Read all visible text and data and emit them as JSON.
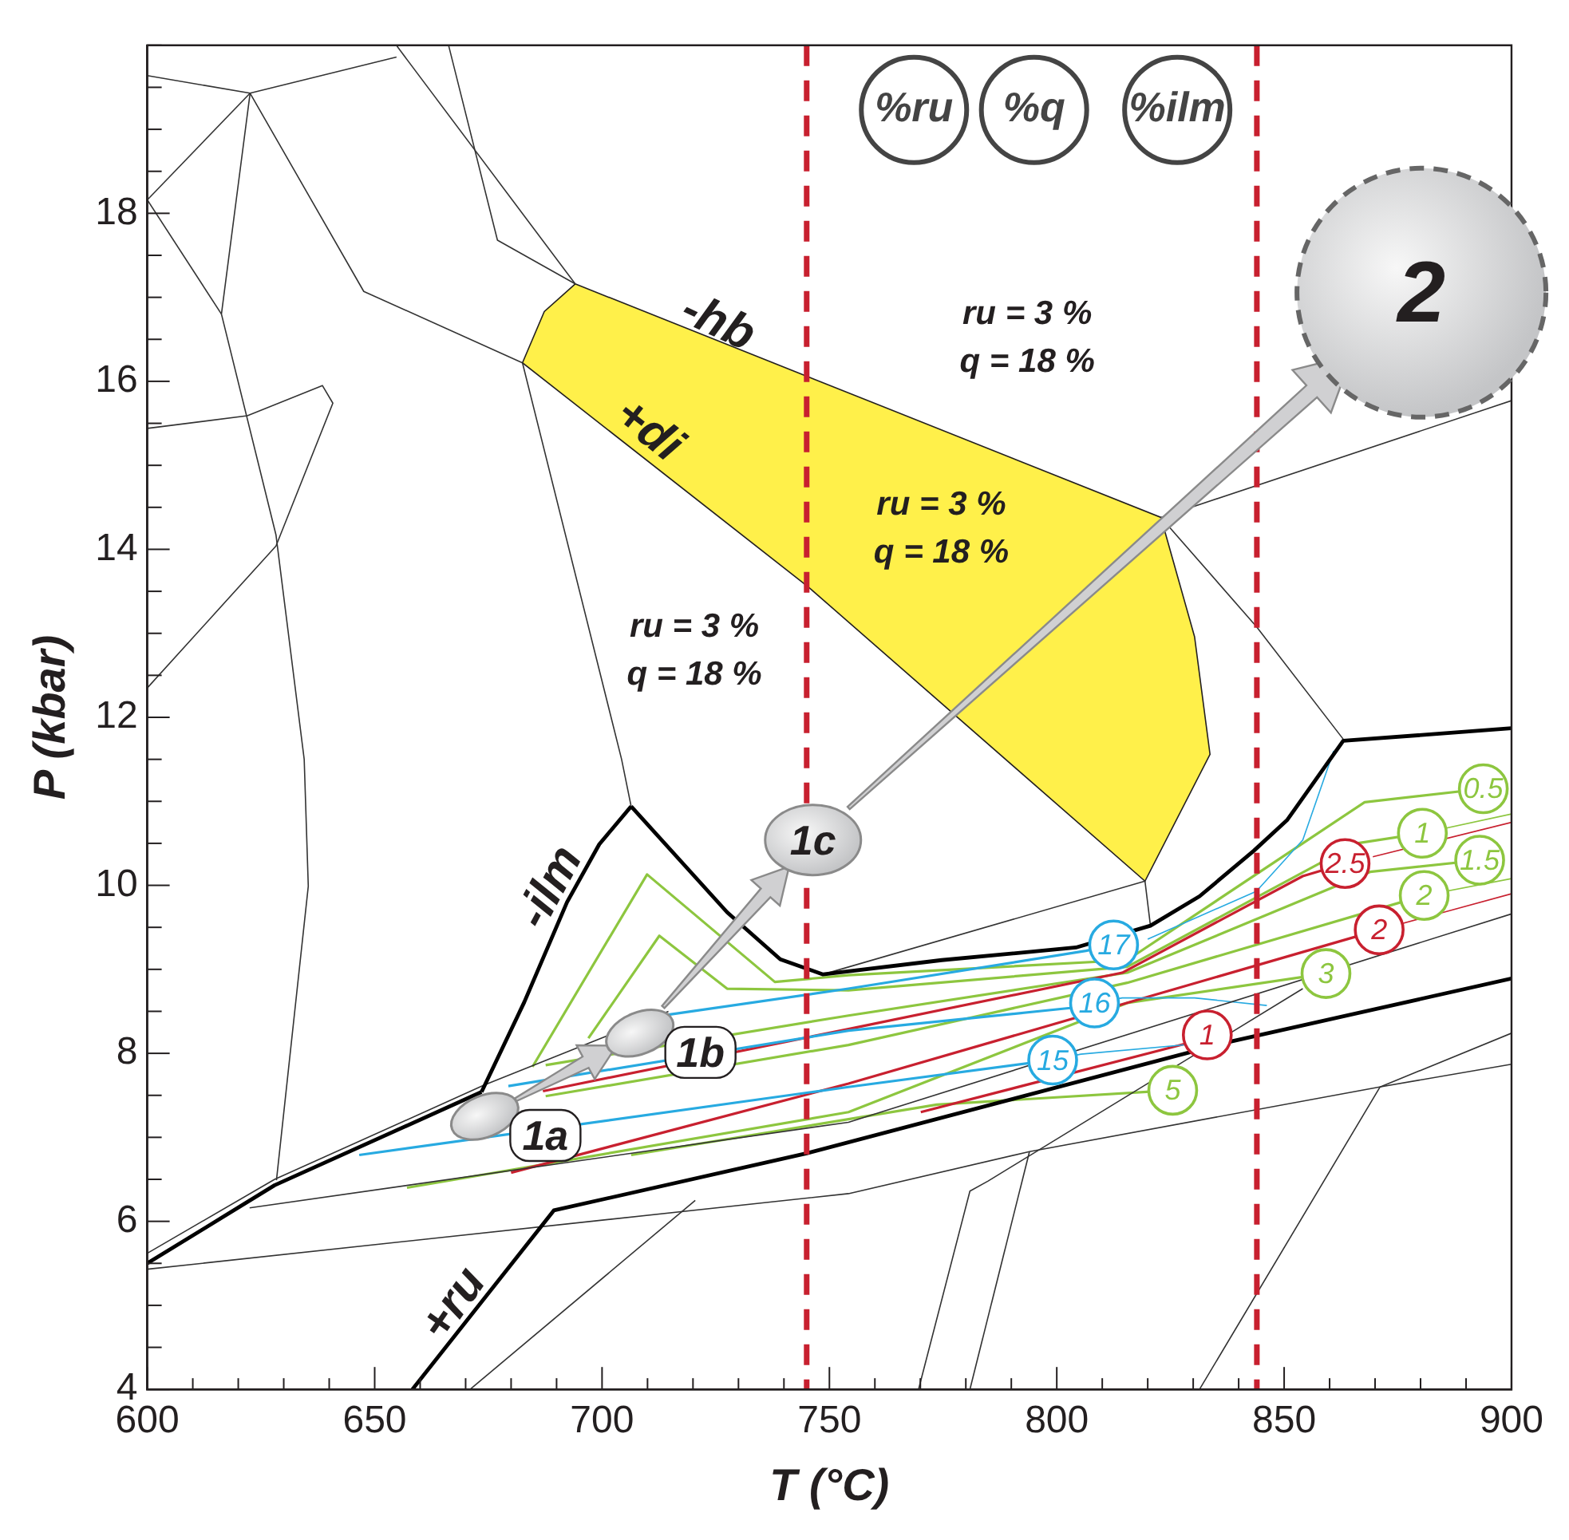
{
  "chart_data": {
    "type": "line",
    "xlabel": "T (°C)",
    "ylabel": "P (kbar)",
    "xlim": [
      600,
      900
    ],
    "ylim": [
      4,
      20
    ],
    "xticks": [
      600,
      {
        "value": 610,
        "label": null
      },
      {
        "value": 620,
        "label": null
      },
      {
        "value": 630,
        "label": null
      },
      {
        "value": 640,
        "label": null
      },
      650,
      {
        "value": 660,
        "label": null
      },
      {
        "value": 670,
        "label": null
      },
      {
        "value": 680,
        "label": null
      },
      {
        "value": 690,
        "label": null
      },
      700,
      {
        "value": 710,
        "label": null
      },
      {
        "value": 720,
        "label": null
      },
      {
        "value": 730,
        "label": null
      },
      {
        "value": 740,
        "label": null
      },
      750,
      {
        "value": 760,
        "label": null
      },
      {
        "value": 770,
        "label": null
      },
      {
        "value": 780,
        "label": null
      },
      {
        "value": 790,
        "label": null
      },
      800,
      {
        "value": 810,
        "label": null
      },
      {
        "value": 820,
        "label": null
      },
      {
        "value": 830,
        "label": null
      },
      {
        "value": 840,
        "label": null
      },
      850,
      {
        "value": 860,
        "label": null
      },
      {
        "value": 870,
        "label": null
      },
      {
        "value": 880,
        "label": null
      },
      {
        "value": 890,
        "label": null
      },
      900
    ],
    "yticks": [
      4,
      {
        "value": 4.5,
        "label": null
      },
      {
        "value": 5,
        "label": null
      },
      {
        "value": 5.5,
        "label": null
      },
      6,
      {
        "value": 6.5,
        "label": null
      },
      {
        "value": 7,
        "label": null
      },
      {
        "value": 7.5,
        "label": null
      },
      8,
      {
        "value": 8.5,
        "label": null
      },
      {
        "value": 9,
        "label": null
      },
      {
        "value": 9.5,
        "label": null
      },
      10,
      {
        "value": 10.5,
        "label": null
      },
      {
        "value": 11,
        "label": null
      },
      {
        "value": 11.5,
        "label": null
      },
      12,
      {
        "value": 12.5,
        "label": null
      },
      {
        "value": 13,
        "label": null
      },
      {
        "value": 13.5,
        "label": null
      },
      14,
      {
        "value": 14.5,
        "label": null
      },
      {
        "value": 15,
        "label": null
      },
      {
        "value": 15.5,
        "label": null
      },
      16,
      {
        "value": 16.5,
        "label": null
      },
      {
        "value": 17,
        "label": null
      },
      {
        "value": 17.5,
        "label": null
      },
      18,
      {
        "value": 18.5,
        "label": null
      },
      {
        "value": 19,
        "label": null
      },
      {
        "value": 19.5,
        "label": null
      },
      {
        "value": 20,
        "label": null
      }
    ],
    "grid": false,
    "ref_lines": [
      {
        "axis": "x",
        "value": 745,
        "color": "#c8202f",
        "line_style": "dashed"
      },
      {
        "axis": "x",
        "value": 844,
        "color": "#c8202f",
        "line_style": "dashed"
      }
    ],
    "series": [
      {
        "type": "area",
        "color": "#fff04a",
        "x": [
          694.1,
          822.9,
          830.3,
          833.7,
          819.4,
          745.2,
          682.5,
          687.3,
          694.1
        ],
        "values": [
          17.16,
          14.38,
          12.96,
          11.56,
          10.05,
          13.56,
          16.22,
          16.83,
          17.16
        ]
      },
      {
        "color": "#000000",
        "x": [
          600,
          628,
          673.5
        ],
        "values": [
          5.5,
          6.43,
          7.54
        ]
      },
      {
        "color": "#000000",
        "x": [
          673.5,
          682.9,
          692.3,
          699.4,
          706.4
        ],
        "values": [
          7.54,
          8.61,
          9.8,
          10.49,
          10.94
        ]
      },
      {
        "color": "#000000",
        "x": [
          706.4,
          727.5,
          739.2,
          748.6,
          774.7,
          804.2,
          820.6,
          831.4,
          843.3,
          850.7,
          863,
          900
        ],
        "values": [
          10.94,
          9.68,
          9.12,
          8.94,
          9.11,
          9.26,
          9.52,
          9.87,
          10.41,
          10.78,
          11.72,
          11.87
        ]
      },
      {
        "color": "#000000",
        "x": [
          658.3,
          689.4,
          745,
          838.2,
          900
        ],
        "values": [
          4,
          6.13,
          6.81,
          8.14,
          8.89
        ]
      },
      {
        "color": "#333333",
        "x": [
          600,
          628,
          674,
          714.6
        ],
        "values": [
          5.62,
          6.5,
          7.62,
          8.5
        ]
      },
      {
        "color": "#333333",
        "x": [
          600,
          754.2,
          794,
          871,
          900
        ],
        "values": [
          5.43,
          6.33,
          6.83,
          7.6,
          7.87
        ]
      },
      {
        "color": "#333333",
        "x": [
          622.5,
          754.2,
          900
        ],
        "values": [
          6.16,
          7.18,
          9.66
        ]
      },
      {
        "color": "#333333",
        "x": [
          671,
          720.5
        ],
        "values": [
          4,
          6.25
        ]
      },
      {
        "color": "#333333",
        "x": [
          769.6,
          780.9,
          784.9,
          854.1
        ],
        "values": [
          4,
          6.36,
          6.48,
          8.77
        ]
      },
      {
        "color": "#333333",
        "x": [
          780.9,
          794
        ],
        "values": [
          4,
          6.83
        ]
      },
      {
        "color": "#333333",
        "x": [
          831.4,
          871.1,
          900
        ],
        "values": [
          4,
          7.6,
          8.24
        ]
      },
      {
        "color": "#333333",
        "x": [
          622.6,
          616.3,
          628.3,
          634.5,
          635.4,
          628.4
        ],
        "values": [
          19.43,
          16.8,
          14.17,
          11.5,
          9.99,
          6.49
        ]
      },
      {
        "color": "#333333",
        "x": [
          600,
          622,
          638.5,
          640.8,
          628.3,
          600
        ],
        "values": [
          15.44,
          15.59,
          15.95,
          15.74,
          14.04,
          12.35
        ]
      },
      {
        "color": "#333333",
        "x": [
          622.6,
          647.6,
          682.5
        ],
        "values": [
          19.43,
          17.07,
          16.22
        ]
      },
      {
        "color": "#333333",
        "x": [
          682.5,
          704.3,
          706.4
        ],
        "values": [
          16.22,
          11.5,
          10.94
        ]
      },
      {
        "color": "#333333",
        "x": [
          654.9,
          694.1
        ],
        "values": [
          19.99,
          17.16
        ]
      },
      {
        "color": "#333333",
        "x": [
          666.3,
          677,
          694.1
        ],
        "values": [
          19.99,
          17.68,
          17.16
        ]
      },
      {
        "color": "#333333",
        "x": [
          600,
          622.6,
          654.8
        ],
        "values": [
          19.64,
          19.43,
          19.86
        ]
      },
      {
        "color": "#333333",
        "x": [
          600,
          622.6
        ],
        "values": [
          18.16,
          19.43
        ]
      },
      {
        "color": "#333333",
        "x": [
          600,
          616.3
        ],
        "values": [
          18.16,
          16.8
        ]
      },
      {
        "color": "#333333",
        "x": [
          822.9,
          900
        ],
        "values": [
          14.38,
          15.77
        ]
      },
      {
        "color": "#333333",
        "x": [
          822.9,
          843.9,
          863
        ],
        "values": [
          14.38,
          13.08,
          11.74
        ]
      },
      {
        "color": "#333333",
        "x": [
          748.6,
          819.4,
          820.6
        ],
        "values": [
          8.94,
          10.05,
          9.52
        ]
      },
      {
        "name": "17",
        "color": "#27aae1",
        "x": [
          714.6,
          754.2,
          806.4,
          812.5
        ],
        "values": [
          8.46,
          8.77,
          9.22,
          9.29
        ]
      },
      {
        "color": "#27aae1",
        "x": [
          820,
          843.9,
          854.1,
          860.9
        ],
        "values": [
          9.36,
          9.93,
          10.54,
          11.6
        ]
      },
      {
        "name": "16",
        "color": "#27aae1",
        "x": [
          679.4,
          754.2,
          803,
          808.3
        ],
        "values": [
          7.61,
          8.27,
          8.54,
          8.6
        ]
      },
      {
        "color": "#27aae1",
        "x": [
          808.3,
          814.4,
          830.3,
          846.2
        ],
        "values": [
          8.6,
          8.66,
          8.66,
          8.57
        ]
      },
      {
        "name": "15",
        "color": "#27aae1",
        "x": [
          646.6,
          754.2,
          799.1
        ],
        "values": [
          6.79,
          7.6,
          7.92
        ]
      },
      {
        "color": "#27aae1",
        "x": [
          799.1,
          805.3,
          828
        ],
        "values": [
          7.92,
          7.99,
          8.1
        ]
      },
      {
        "name": "2.5",
        "color": "#c8202f",
        "x": [
          687,
          754.2,
          814.4,
          854.1,
          863.4
        ],
        "values": [
          7.55,
          8.29,
          8.96,
          10.11,
          10.26
        ]
      },
      {
        "color": "#c8202f",
        "x": [
          869.5,
          900
        ],
        "values": [
          10.34,
          10.75
        ]
      },
      {
        "name": "2",
        "color": "#c8202f",
        "x": [
          680,
          754.2,
          870.9
        ],
        "values": [
          6.58,
          7.64,
          9.47
        ]
      },
      {
        "color": "#c8202f",
        "x": [
          870.9,
          900
        ],
        "values": [
          9.47,
          9.9
        ]
      },
      {
        "name": "1",
        "color": "#c8202f",
        "x": [
          770.1,
          828,
          833.1
        ],
        "values": [
          7.3,
          8.11,
          8.22
        ]
      },
      {
        "name": "0.5",
        "color": "#8dc63f",
        "x": [
          684.7,
          709.9,
          738,
          754.2,
          815.5,
          867.7,
          893.8
        ],
        "values": [
          7.84,
          10.13,
          8.85,
          8.93,
          9.11,
          10.99,
          11.15
        ]
      },
      {
        "name": "1",
        "color": "#8dc63f",
        "x": [
          697,
          712.6,
          727.5,
          754.2,
          815.5,
          866,
          880.4
        ],
        "values": [
          8.18,
          9.4,
          8.77,
          8.75,
          9.03,
          10.5,
          10.62
        ]
      },
      {
        "color": "#8dc63f",
        "x": [
          880.4,
          900
        ],
        "values": [
          10.62,
          10.85
        ]
      },
      {
        "name": "1.5",
        "color": "#8dc63f",
        "x": [
          687.6,
          754.2,
          815.5,
          868.9,
          893
        ],
        "values": [
          7.86,
          8.45,
          8.96,
          10.16,
          10.3
        ]
      },
      {
        "name": "2",
        "color": "#8dc63f",
        "x": [
          687.6,
          754.2,
          815.5,
          880.8
        ],
        "values": [
          7.49,
          8.1,
          8.84,
          9.88
        ]
      },
      {
        "color": "#8dc63f",
        "x": [
          880.8,
          900
        ],
        "values": [
          9.88,
          10.08
        ]
      },
      {
        "name": "3",
        "color": "#8dc63f",
        "x": [
          657.1,
          754.2,
          815.5,
          859.2
        ],
        "values": [
          6.4,
          7.3,
          8.6,
          8.95
        ]
      },
      {
        "name": "5",
        "color": "#8dc63f",
        "x": [
          706.4,
          773.6,
          825.5
        ],
        "values": [
          6.79,
          7.39,
          7.56
        ]
      }
    ],
    "annotations": [
      {
        "text": "1a",
        "x": 674.2,
        "y": 7.25
      },
      {
        "text": "1b",
        "x": 708.3,
        "y": 8.24
      },
      {
        "text": "1c",
        "x": 746.4,
        "y": 10.54
      },
      "2",
      "-hb",
      "+di",
      "-ilm",
      "+ru",
      "ru = 3 %\nq = 18 %",
      "ru = 3 %\nq = 18 %",
      "ru = 3 %\nq = 18 %",
      "%ru",
      "%q",
      "%ilm"
    ]
  }
}
